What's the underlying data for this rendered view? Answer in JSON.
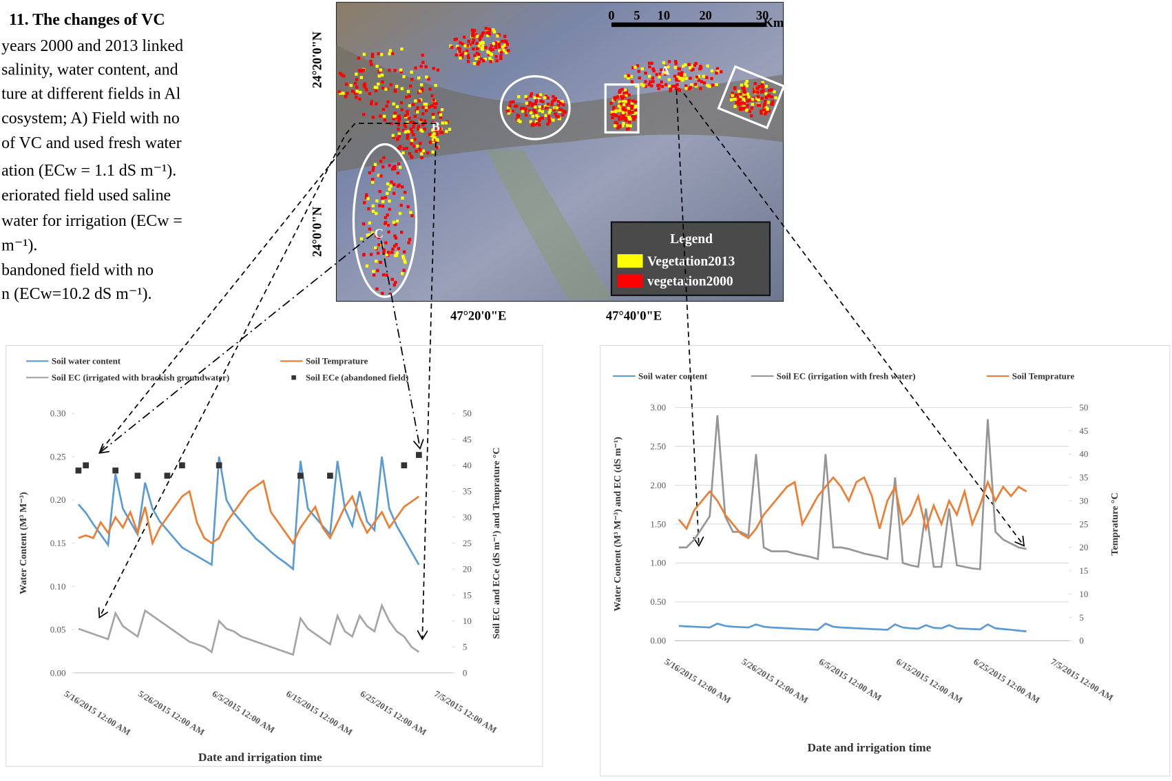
{
  "caption": {
    "lines": [
      "11. The changes  of VC",
      "years 2000 and 2013 linked",
      "salinity, water content, and",
      "ture at different fields in Al",
      "cosystem; A) Field with no",
      "of VC and used fresh water",
      "ation (ECw = 1.1 dS m⁻¹).",
      "eriorated field used saline",
      "water for irrigation (ECw =",
      "m⁻¹).",
      "bandoned  field  with  no",
      "n (ECw=10.2 dS m⁻¹)."
    ]
  },
  "map": {
    "lat_labels": [
      "24°20'0\"N",
      "24°0'0\"N"
    ],
    "lon_labels": [
      "47°20'0\"E",
      "47°40'0\"E"
    ],
    "scale_labels": [
      "0",
      "5",
      "10",
      "20",
      "30",
      "Km"
    ],
    "site_labels": [
      "A",
      "B",
      "C"
    ],
    "legend_title": "Legend",
    "legend": [
      {
        "name": "Vegetation2013",
        "color": "#ffff00"
      },
      {
        "name": "vegetation2000",
        "color": "#ff0000"
      }
    ]
  },
  "chart_data": [
    {
      "type": "line",
      "x_label": "Date and irrigation time",
      "y_label": "Water Content (M³ M⁻³)",
      "y2_label": "Soil EC and ECe (dS m⁻¹) and Temprature °C",
      "grid": false,
      "categories": [
        "5/16/2015 12:00 AM",
        null,
        null,
        null,
        null,
        null,
        null,
        null,
        null,
        null,
        "5/26/2015 12:00 AM",
        null,
        null,
        null,
        null,
        null,
        null,
        null,
        null,
        null,
        "6/5/2015 12:00 AM",
        null,
        null,
        null,
        null,
        null,
        null,
        null,
        null,
        null,
        "6/15/2015 12:00 AM",
        null,
        null,
        null,
        null,
        null,
        null,
        null,
        null,
        null,
        "6/25/2015 12:00 AM",
        null,
        null,
        null,
        null,
        null,
        null,
        null,
        null,
        null,
        "7/5/2015 12:00 AM"
      ],
      "ylim": [
        0,
        0.3
      ],
      "yticks": [
        {
          "value": 0,
          "label": "0.00"
        },
        0.05,
        {
          "value": 0.1,
          "label": "0.10"
        },
        0.15,
        {
          "value": 0.2,
          "label": "0.20"
        },
        0.25,
        {
          "value": 0.3,
          "label": "0.30"
        }
      ],
      "y2lim": [
        0,
        50
      ],
      "y2ticks": [
        0,
        5,
        10,
        15,
        20,
        25,
        30,
        35,
        40,
        45,
        50
      ],
      "series": [
        {
          "name": "Soil water content",
          "color": "#5b9bd5",
          "values": [
            0.195,
            0.185,
            0.172,
            0.16,
            0.148,
            0.23,
            0.19,
            0.175,
            0.16,
            0.22,
            0.19,
            0.175,
            0.165,
            0.155,
            0.145,
            0.14,
            0.135,
            0.13,
            0.125,
            0.25,
            0.2,
            0.185,
            0.175,
            0.165,
            0.155,
            0.148,
            0.14,
            0.133,
            0.127,
            0.12,
            0.245,
            0.19,
            0.18,
            0.17,
            0.16,
            0.245,
            0.19,
            0.17,
            0.21,
            0.175,
            0.165,
            0.25,
            0.19,
            0.17,
            0.155,
            0.14,
            0.125,
            null,
            null,
            null,
            null
          ]
        },
        {
          "name": "Soil Temprature",
          "color": "#ed7d31",
          "axis": "y2",
          "values": [
            26,
            26.5,
            26,
            29,
            27,
            30,
            28,
            31,
            27,
            32,
            25,
            28,
            30,
            32,
            34,
            35,
            29,
            26,
            25,
            26,
            29,
            31,
            33,
            35,
            36,
            37,
            31,
            29,
            27,
            25,
            28,
            30,
            32,
            28,
            26,
            29,
            32,
            34,
            30,
            27,
            29,
            31,
            28,
            30,
            32,
            33,
            34,
            null,
            null,
            null,
            null
          ]
        },
        {
          "name": "Soil EC (irrigated with brackish groundwater)",
          "color": "#a5a5a5",
          "axis": "y2",
          "values": [
            8.5,
            8,
            7.5,
            7,
            6.5,
            11.5,
            9,
            8,
            7,
            12,
            11,
            10,
            9,
            8,
            7,
            6,
            5.5,
            5,
            4,
            10,
            8.5,
            8,
            7,
            6.5,
            6,
            5.5,
            5,
            4.5,
            4,
            3.5,
            10.5,
            8.5,
            7.5,
            6.5,
            5.5,
            11,
            8,
            7,
            11,
            9,
            8,
            13,
            10,
            8,
            7,
            5,
            4,
            null,
            null,
            null,
            null
          ]
        },
        {
          "name": "Soil ECe (abandoned field)",
          "color": "#333333",
          "axis": "y2",
          "marker": "square",
          "values": [
            39,
            40,
            null,
            null,
            null,
            39,
            null,
            null,
            38,
            null,
            null,
            null,
            38,
            null,
            40,
            null,
            null,
            null,
            null,
            40,
            null,
            null,
            null,
            null,
            null,
            null,
            null,
            null,
            null,
            null,
            38,
            null,
            null,
            null,
            38,
            null,
            null,
            null,
            null,
            null,
            null,
            null,
            null,
            null,
            40,
            null,
            42,
            null,
            null,
            null,
            null
          ]
        }
      ]
    },
    {
      "type": "line",
      "x_label": "Date and irrigation time",
      "y_label": "Water Content (M³ M⁻³) and  EC (dS m⁻¹)",
      "y2_label": "Temprature °C",
      "grid": true,
      "categories": [
        "5/16/2015 12:00 AM",
        null,
        null,
        null,
        null,
        null,
        null,
        null,
        null,
        null,
        "5/26/2015 12:00 AM",
        null,
        null,
        null,
        null,
        null,
        null,
        null,
        null,
        null,
        "6/5/2015 12:00 AM",
        null,
        null,
        null,
        null,
        null,
        null,
        null,
        null,
        null,
        "6/15/2015 12:00 AM",
        null,
        null,
        null,
        null,
        null,
        null,
        null,
        null,
        null,
        "6/25/2015 12:00 AM",
        null,
        null,
        null,
        null,
        null,
        null,
        null,
        null,
        null,
        "7/5/2015 12:00 AM"
      ],
      "ylim": [
        0,
        3
      ],
      "yticks": [
        {
          "value": 0,
          "label": "0.00"
        },
        {
          "value": 0.5,
          "label": "0.50"
        },
        {
          "value": 1,
          "label": "1.00"
        },
        {
          "value": 1.5,
          "label": "1.50"
        },
        {
          "value": 2,
          "label": "2.00"
        },
        {
          "value": 2.5,
          "label": "2.50"
        },
        {
          "value": 3,
          "label": "3.00"
        }
      ],
      "y2lim": [
        0,
        50
      ],
      "y2ticks": [
        0,
        5,
        10,
        15,
        20,
        25,
        30,
        35,
        40,
        45,
        50
      ],
      "series": [
        {
          "name": "Soil water content",
          "color": "#5b9bd5",
          "values": [
            0.19,
            0.185,
            0.18,
            0.175,
            0.17,
            0.22,
            0.19,
            0.18,
            0.175,
            0.17,
            0.21,
            0.18,
            0.17,
            0.165,
            0.16,
            0.155,
            0.15,
            0.145,
            0.14,
            0.22,
            0.18,
            0.17,
            0.165,
            0.16,
            0.155,
            0.15,
            0.145,
            0.14,
            0.21,
            0.17,
            0.16,
            0.155,
            0.2,
            0.165,
            0.16,
            0.2,
            0.16,
            0.155,
            0.15,
            0.145,
            0.21,
            0.16,
            0.15,
            0.14,
            0.13,
            0.12,
            null,
            null,
            null,
            null,
            null
          ]
        },
        {
          "name": "Soil EC (irrigation with fresh water)",
          "color": "#969696",
          "values": [
            1.2,
            1.2,
            1.3,
            1.45,
            1.6,
            2.9,
            1.6,
            1.4,
            1.4,
            1.35,
            2.4,
            1.2,
            1.15,
            1.15,
            1.15,
            1.12,
            1.1,
            1.08,
            1.05,
            2.4,
            1.2,
            1.2,
            1.18,
            1.15,
            1.12,
            1.1,
            1.08,
            1.05,
            2.1,
            1,
            0.97,
            0.95,
            1.7,
            0.95,
            0.95,
            1.7,
            0.97,
            0.95,
            0.93,
            0.92,
            2.85,
            1.4,
            1.3,
            1.25,
            1.2,
            1.18,
            null,
            null,
            null,
            null,
            null
          ]
        },
        {
          "name": "Soil Temprature",
          "color": "#ed7d31",
          "axis": "y2",
          "values": [
            26,
            24,
            28,
            30,
            32,
            30,
            27,
            25,
            23,
            22,
            24,
            27,
            29,
            31,
            33,
            34,
            25,
            28,
            31,
            33,
            35,
            33,
            30,
            34,
            35,
            31,
            24,
            30,
            33,
            25,
            27,
            31,
            24,
            29,
            25,
            30,
            27,
            32,
            25,
            29,
            34,
            30,
            33,
            31,
            33,
            32,
            null,
            null,
            null,
            null,
            null
          ]
        }
      ]
    }
  ]
}
